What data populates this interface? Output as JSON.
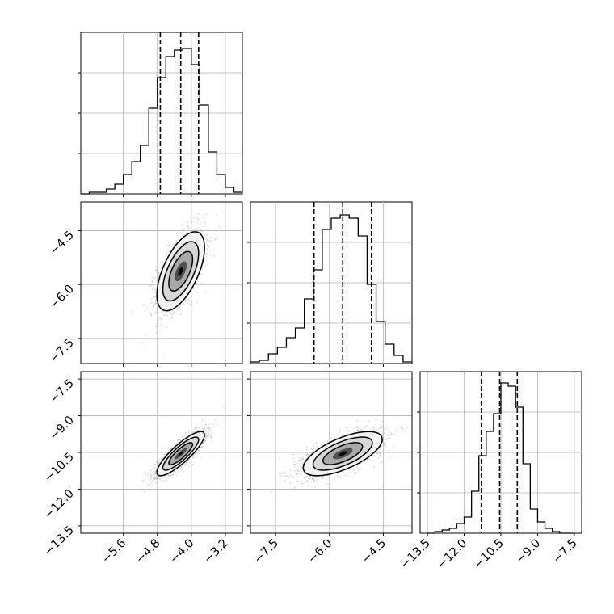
{
  "chart_data": {
    "type": "corner",
    "parameters": [
      {
        "xlim": [
          -6.6,
          -2.8
        ],
        "ylim_hist": [
          0,
          1.0
        ],
        "yticks_hist": [
          0.25,
          0.5,
          0.75
        ],
        "hist_x_ticks": [
          -5.6,
          -4.8,
          -4.0,
          -3.2
        ],
        "hist_x_tick_labels": [
          "-5.6",
          "-4.8",
          "-4.0",
          "-3.2"
        ],
        "axis_ticks": [
          -5.6,
          -4.8,
          -4.0,
          -3.2
        ],
        "axis_tick_labels": [
          "−5.6",
          "−4.8",
          "−4.0",
          "−3.2"
        ],
        "quantiles": [
          -4.73,
          -4.25,
          -3.83
        ],
        "hist_bins": [
          -6.6,
          -6.4,
          -6.2,
          -6.0,
          -5.8,
          -5.6,
          -5.4,
          -5.2,
          -5.0,
          -4.8,
          -4.6,
          -4.4,
          -4.2,
          -4.0,
          -3.8,
          -3.6,
          -3.4,
          -3.2,
          -3.0,
          -2.8
        ],
        "hist_counts": [
          0.0,
          0.01,
          0.01,
          0.03,
          0.06,
          0.12,
          0.2,
          0.3,
          0.53,
          0.72,
          0.85,
          0.89,
          0.9,
          0.8,
          0.55,
          0.26,
          0.12,
          0.04,
          0.01
        ]
      },
      {
        "xlim": [
          -8.2,
          -3.7
        ],
        "ylim_hist": [
          0,
          1.0
        ],
        "yticks_hist": [
          0.25,
          0.5,
          0.75
        ],
        "axis_ticks": [
          -7.5,
          -6.0,
          -4.5
        ],
        "axis_tick_labels": [
          "−7.5",
          "−6.0",
          "−4.5"
        ],
        "quantiles": [
          -6.43,
          -5.63,
          -4.83
        ],
        "hist_bins": [
          -8.2,
          -7.95,
          -7.7,
          -7.45,
          -7.2,
          -6.95,
          -6.7,
          -6.45,
          -6.2,
          -5.95,
          -5.7,
          -5.45,
          -5.2,
          -4.95,
          -4.7,
          -4.45,
          -4.2,
          -3.95,
          -3.7
        ],
        "hist_counts": [
          0.01,
          0.02,
          0.06,
          0.1,
          0.16,
          0.22,
          0.4,
          0.58,
          0.83,
          0.9,
          0.92,
          0.9,
          0.79,
          0.49,
          0.26,
          0.12,
          0.05,
          0.01
        ]
      },
      {
        "xlim": [
          -13.8,
          -7.2
        ],
        "ylim_hist": [
          0,
          1.0
        ],
        "yticks_hist": [
          0.25,
          0.5,
          0.75
        ],
        "axis_ticks": [
          -13.5,
          -12.0,
          -10.5,
          -9.0,
          -7.5
        ],
        "axis_tick_labels": [
          "−13.5",
          "−12.0",
          "−10.5",
          "−9.0",
          "−7.5"
        ],
        "quantiles": [
          -11.3,
          -10.55,
          -9.83
        ],
        "hist_bins": [
          -13.5,
          -13.2,
          -12.9,
          -12.6,
          -12.3,
          -12.0,
          -11.7,
          -11.4,
          -11.1,
          -10.8,
          -10.5,
          -10.2,
          -9.9,
          -9.6,
          -9.3,
          -9.0,
          -8.7,
          -8.4,
          -8.1,
          -7.8,
          -7.5
        ],
        "hist_counts": [
          0.0,
          0.01,
          0.02,
          0.03,
          0.06,
          0.1,
          0.26,
          0.48,
          0.63,
          0.74,
          0.93,
          0.91,
          0.78,
          0.43,
          0.15,
          0.07,
          0.03,
          0.01,
          0.0,
          0.0
        ]
      }
    ],
    "pairs": [
      {
        "row": 1,
        "col": 0,
        "mean": [
          -4.25,
          -5.63
        ],
        "sd": [
          0.28,
          0.55
        ],
        "rho": 0.6
      },
      {
        "row": 2,
        "col": 0,
        "mean": [
          -4.25,
          -10.55
        ],
        "sd": [
          0.28,
          0.45
        ],
        "rho": 0.85
      },
      {
        "row": 2,
        "col": 1,
        "mean": [
          -5.63,
          -10.55
        ],
        "sd": [
          0.55,
          0.45
        ],
        "rho": 0.65
      }
    ],
    "grid": true,
    "colors": {
      "line": "#000000",
      "grid": "#b0b0b0",
      "point": "#b8b8b8",
      "fill": "#3a3a3a"
    }
  }
}
